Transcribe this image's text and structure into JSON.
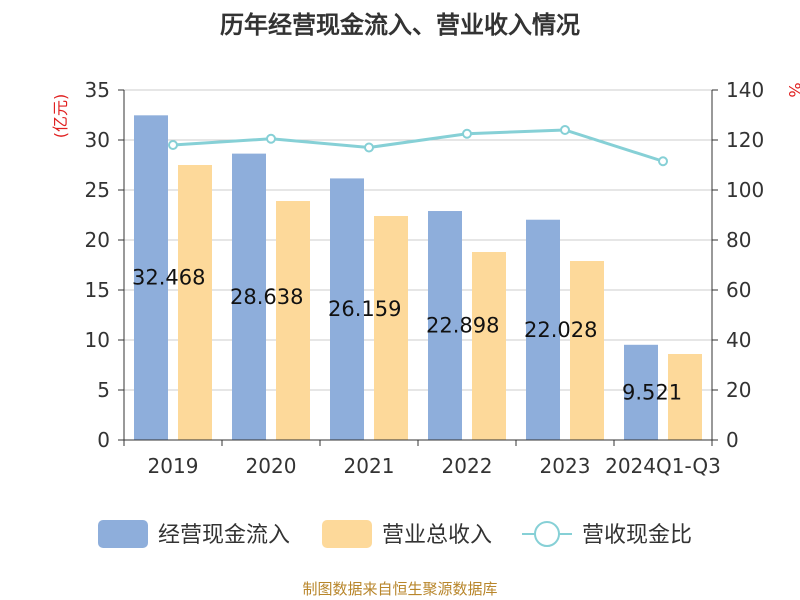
{
  "chart_data": {
    "type": "bar",
    "title": "历年经营现金流入、营业收入情况",
    "categories": [
      "2019",
      "2020",
      "2021",
      "2022",
      "2023",
      "2024Q1-Q3"
    ],
    "series": [
      {
        "name": "经营现金流入",
        "kind": "bar",
        "axis": "left",
        "color": "#8eaedb",
        "values": [
          32.468,
          28.638,
          26.159,
          22.898,
          22.028,
          9.521
        ],
        "labels": [
          "32.468",
          "28.638",
          "26.159",
          "22.898",
          "22.028",
          "9.521"
        ]
      },
      {
        "name": "营业总收入",
        "kind": "bar",
        "axis": "left",
        "color": "#fdd99a",
        "values": [
          27.5,
          23.9,
          22.4,
          18.8,
          17.9,
          8.6
        ]
      },
      {
        "name": "营收现金比",
        "kind": "line",
        "axis": "right",
        "color": "#86d0d6",
        "values": [
          118,
          120.5,
          117,
          122.5,
          124,
          111.5
        ]
      }
    ],
    "y_left": {
      "unit": "(亿元)",
      "min": 0,
      "max": 35,
      "step": 5
    },
    "y_right": {
      "unit": "%",
      "min": 0,
      "max": 140,
      "step": 20
    },
    "grid": true,
    "legend_position": "bottom"
  },
  "source_text": "制图数据来自恒生聚源数据库"
}
